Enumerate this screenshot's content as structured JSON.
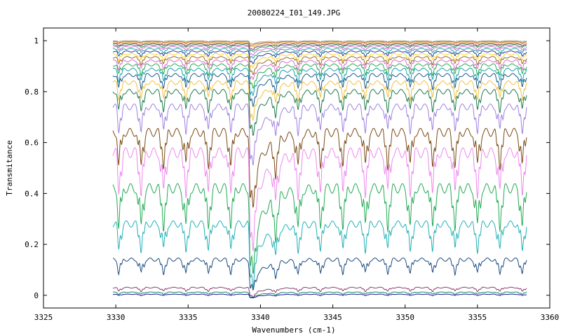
{
  "chart_data": {
    "type": "line",
    "title": "20080224_I01_149.JPG",
    "xlabel": "Wavenumbers (cm-1)",
    "ylabel": "Transmitance",
    "xlim": [
      3325,
      3360
    ],
    "ylim": [
      -0.05,
      1.05
    ],
    "x_ticks": [
      "3325",
      "3330",
      "3335",
      "3340",
      "3345",
      "3350",
      "3355",
      "3360"
    ],
    "y_ticks": [
      "0",
      "0.2",
      "0.4",
      "0.6",
      "0.8",
      "1"
    ],
    "grid": false,
    "legend": "none",
    "x_range_of_data": [
      3329.8,
      3358.4
    ],
    "periodic_line_spacing_cm1": 1.55,
    "strong_absorption_center_cm1": 3339.3,
    "series": [
      {
        "baseline": 1.0,
        "color": "#b0b0b0"
      },
      {
        "baseline": 0.997,
        "color": "#bb6a2a"
      },
      {
        "baseline": 0.993,
        "color": "#e0a020"
      },
      {
        "baseline": 0.988,
        "color": "#7f3f7f"
      },
      {
        "baseline": 0.983,
        "color": "#2b9a55"
      },
      {
        "baseline": 0.976,
        "color": "#d86bd8"
      },
      {
        "baseline": 0.968,
        "color": "#2aa5a5"
      },
      {
        "baseline": 0.958,
        "color": "#1a3ea0"
      },
      {
        "baseline": 0.947,
        "color": "#ffd42a"
      },
      {
        "baseline": 0.935,
        "color": "#9a6a2a"
      },
      {
        "baseline": 0.921,
        "color": "#d070d0"
      },
      {
        "baseline": 0.905,
        "color": "#28aa4a"
      },
      {
        "baseline": 0.887,
        "color": "#1aa0b0"
      },
      {
        "baseline": 0.865,
        "color": "#1a5a8a"
      },
      {
        "baseline": 0.835,
        "color": "#f0c040"
      },
      {
        "baseline": 0.8,
        "color": "#1e7a4a"
      },
      {
        "baseline": 0.74,
        "color": "#a080e0"
      },
      {
        "baseline": 0.64,
        "color": "#7a4a14"
      },
      {
        "baseline": 0.56,
        "color": "#ee88ee"
      },
      {
        "baseline": 0.42,
        "color": "#22aa55"
      },
      {
        "baseline": 0.28,
        "color": "#22b0b8"
      },
      {
        "baseline": 0.14,
        "color": "#1a4a80"
      },
      {
        "baseline": 0.03,
        "color": "#8a3a6a"
      },
      {
        "baseline": 0.012,
        "color": "#108a6a"
      },
      {
        "baseline": 0.004,
        "color": "#1a1aa0"
      }
    ]
  }
}
